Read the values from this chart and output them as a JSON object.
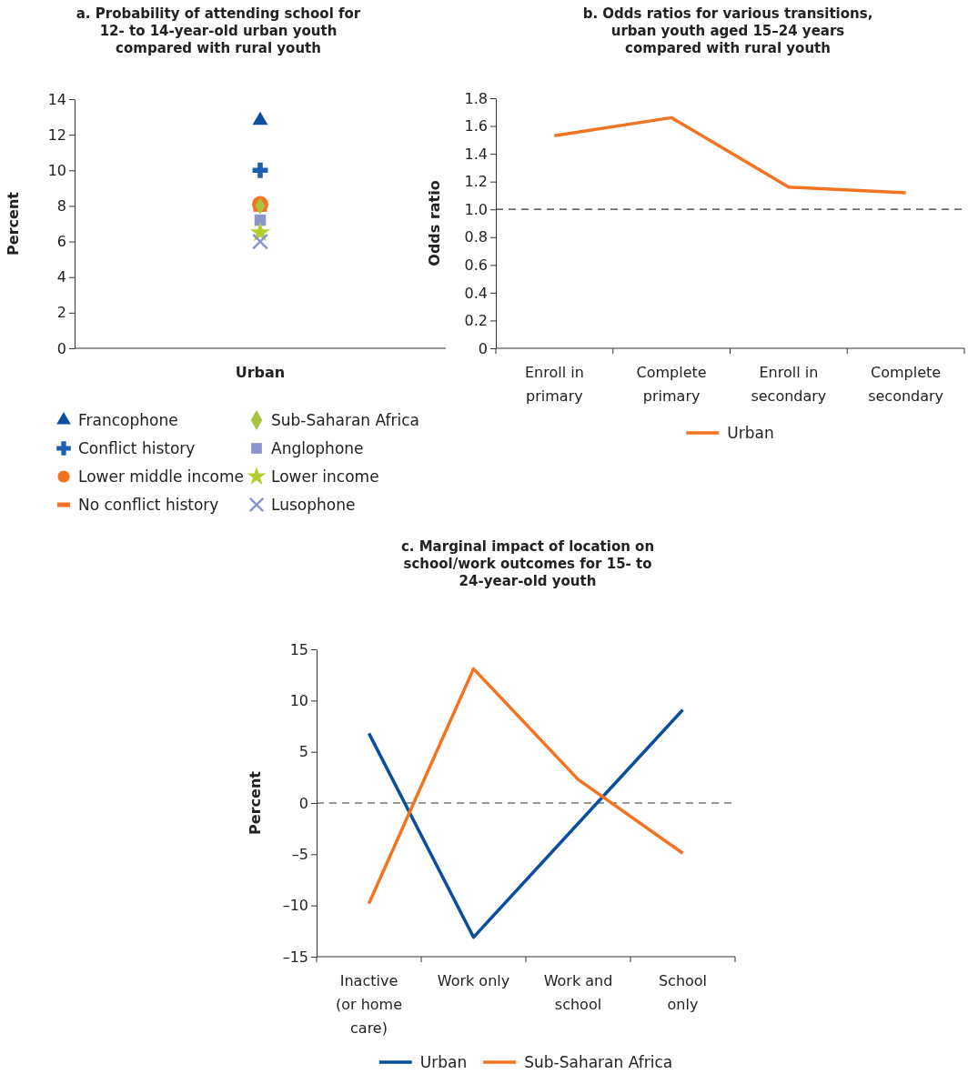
{
  "chart_data": [
    {
      "type": "scatter",
      "title": "a. Probability of attending school for 12- to 14-year-old urban youth compared with rural youth",
      "ylabel": "Percent",
      "categories": [
        "Urban"
      ],
      "ylim": [
        0,
        14
      ],
      "yticks": [
        0,
        2,
        4,
        6,
        8,
        10,
        12,
        14
      ],
      "legend": "bottom",
      "series": [
        {
          "name": "Francophone",
          "color": "#0d4fa0",
          "marker": "triangle",
          "values": [
            12.8
          ]
        },
        {
          "name": "Conflict history",
          "color": "#1f5fb0",
          "marker": "cross",
          "values": [
            10.0
          ]
        },
        {
          "name": "Lower middle income",
          "color": "#f47321",
          "marker": "circle",
          "values": [
            8.1
          ]
        },
        {
          "name": "No conflict history",
          "color": "#f37021",
          "values": [
            7.8
          ]
        },
        {
          "name": "Sub-Saharan Africa",
          "color": "#a8c43c",
          "marker": "diamond",
          "values": [
            8.0
          ]
        },
        {
          "name": "Anglophone",
          "color": "#8a95cc",
          "marker": "square",
          "values": [
            7.2
          ]
        },
        {
          "name": "Lower income",
          "color": "#b5cc2e",
          "marker": "star",
          "values": [
            6.5
          ]
        },
        {
          "name": "Lusophone",
          "color": "#8a95cc",
          "marker": "x",
          "values": [
            6.0
          ]
        }
      ]
    },
    {
      "type": "line",
      "title": "b. Odds ratios for various transitions, urban youth aged 15–24 years compared with rural youth",
      "ylabel": "Odds ratio",
      "categories": [
        "Enroll in primary",
        "Complete primary",
        "Enroll in secondary",
        "Complete secondary"
      ],
      "ylim": [
        0,
        1.8
      ],
      "yticks": [
        0,
        0.2,
        0.4,
        0.6,
        0.8,
        {
          "value": 1,
          "label": "1.0"
        },
        1.2,
        1.4,
        1.6,
        1.8
      ],
      "legend": "bottom",
      "ref_lines": [
        {
          "axis": "y",
          "value": 1,
          "label": null,
          "line_style": "dashed",
          "color": "#333333"
        }
      ],
      "series": [
        {
          "name": "Urban",
          "color": "#f47321",
          "values": [
            1.53,
            1.66,
            1.16,
            1.12
          ]
        }
      ]
    },
    {
      "type": "line",
      "title": "c. Marginal impact of location on school/work outcomes for 15- to 24-year-old youth",
      "ylabel": "Percent",
      "categories": [
        "Inactive (or home care)",
        "Work only",
        "Work and school",
        "School only"
      ],
      "ylim": [
        -15,
        15
      ],
      "yticks": [
        {
          "value": -15,
          "label": "–15"
        },
        {
          "value": -10,
          "label": "–10"
        },
        {
          "value": -5,
          "label": "–5"
        },
        0,
        5,
        10,
        15
      ],
      "legend": "bottom",
      "ref_lines": [
        {
          "axis": "y",
          "value": 0,
          "label": null,
          "line_style": "dashed",
          "color": "#333333"
        }
      ],
      "series": [
        {
          "name": "Urban",
          "color": "#0a4f9e",
          "values": [
            6.8,
            -13.1,
            -2.0,
            9.1
          ]
        },
        {
          "name": "Sub-Saharan Africa",
          "color": "#f47321",
          "values": [
            -9.8,
            13.1,
            2.3,
            -4.9
          ]
        }
      ]
    }
  ]
}
